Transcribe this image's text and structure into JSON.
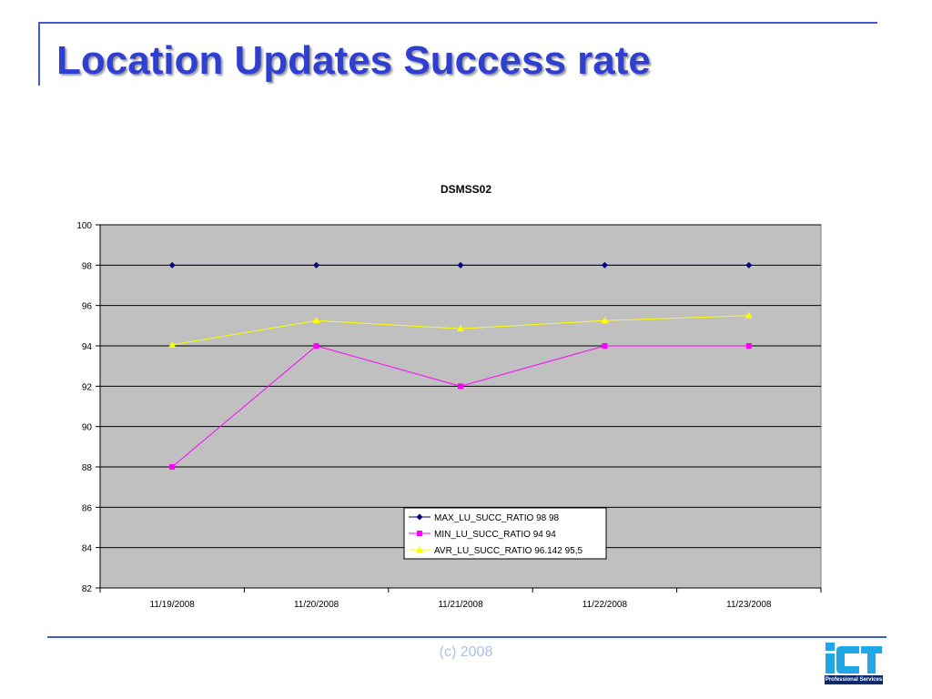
{
  "slide": {
    "title": "Location Updates Success rate",
    "footer": "(c) 2008",
    "logo_text": "iCT",
    "logo_tagline": "Professional Services",
    "accent_color": "#3a5fcd"
  },
  "chart_data": {
    "type": "line",
    "title": "DSMSS02",
    "xlabel": "",
    "ylabel": "",
    "categories": [
      "11/19/2008",
      "11/20/2008",
      "11/21/2008",
      "11/22/2008",
      "11/23/2008"
    ],
    "ylim": [
      82,
      100
    ],
    "yticks": [
      82,
      84,
      86,
      88,
      90,
      92,
      94,
      96,
      98,
      100
    ],
    "grid": true,
    "plot_background": "#c0c0c0",
    "legend_position": "bottom-right inside plot",
    "series": [
      {
        "name": "MAX_LU_SUCC_RATIO 98 98",
        "values": [
          98,
          98,
          98,
          98,
          98
        ],
        "color": "#000080",
        "marker": "diamond"
      },
      {
        "name": "MIN_LU_SUCC_RATIO 94 94",
        "values": [
          88,
          94,
          92,
          94,
          94
        ],
        "color": "#ff00ff",
        "marker": "square"
      },
      {
        "name": "AVR_LU_SUCC_RATIO 96.142 95,5",
        "values": [
          94.05,
          95.25,
          94.85,
          95.25,
          95.5
        ],
        "color": "#ffff00",
        "marker": "triangle"
      }
    ]
  }
}
